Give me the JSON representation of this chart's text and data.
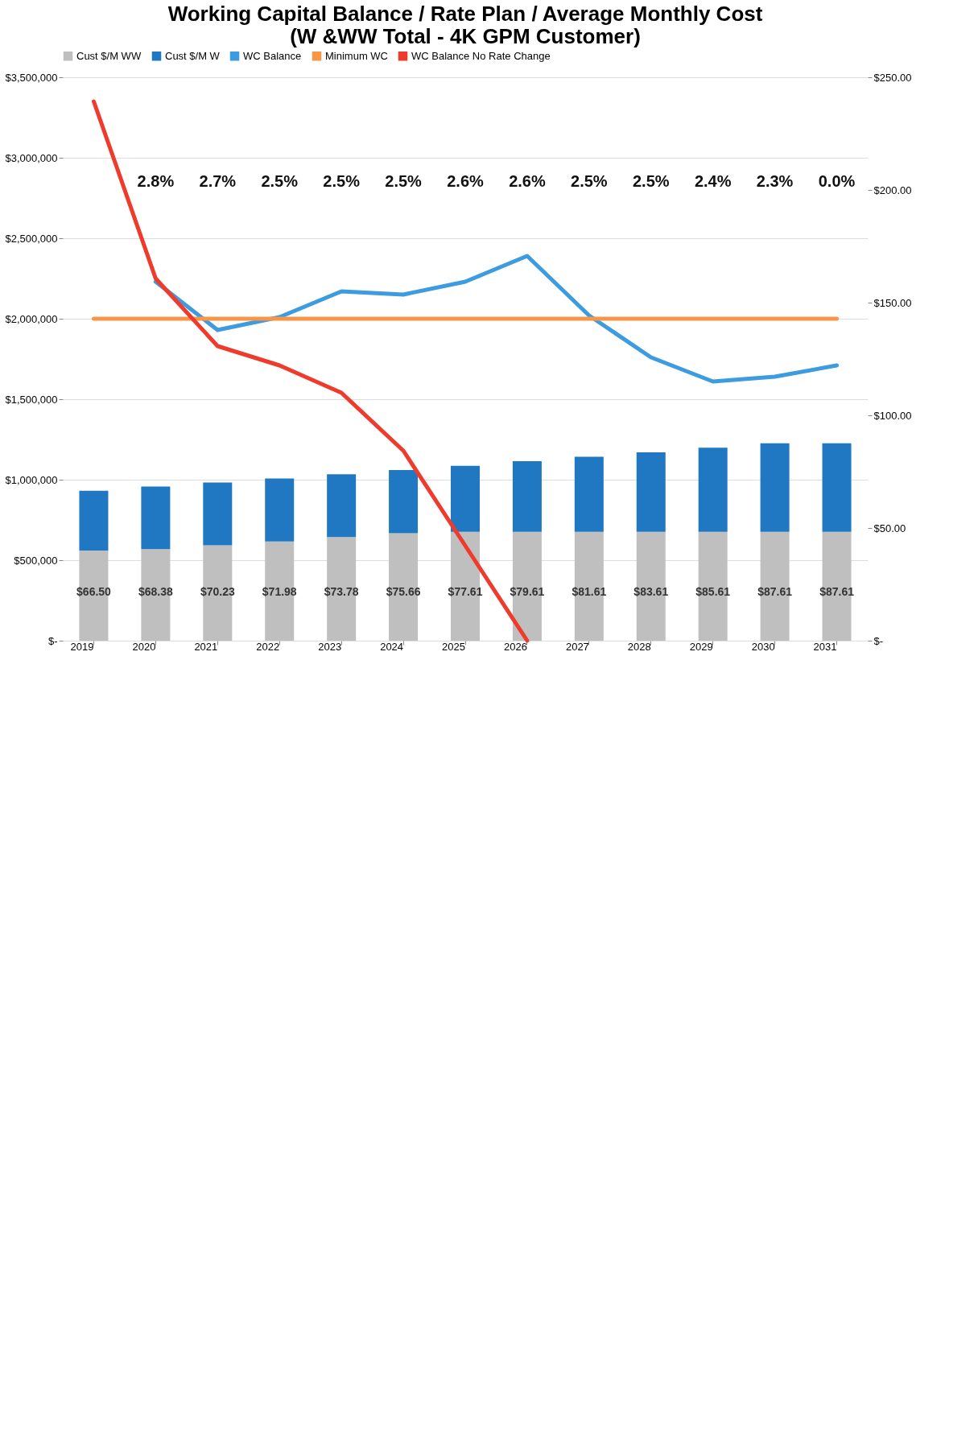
{
  "chart_data": {
    "type": "bar",
    "title": [
      "Working Capital Balance / Rate Plan / Average Monthly Cost",
      "(W &WW Total - 4K GPM Customer)"
    ],
    "categories": [
      "2019",
      "2020",
      "2021",
      "2022",
      "2023",
      "2024",
      "2025",
      "2026",
      "2027",
      "2028",
      "2029",
      "2030",
      "2031"
    ],
    "stacked": true,
    "series": [
      {
        "name": "Cust $/M WW",
        "axis": "y2",
        "color": "#bfbfbf",
        "values": [
          40,
          40.6,
          42.3,
          44,
          46,
          47.7,
          48.3,
          48.3,
          48.3,
          48.3,
          48.3,
          48.3,
          48.3
        ]
      },
      {
        "name": "Cust $/M W",
        "axis": "y2",
        "color": "#1f78c1",
        "values": [
          26.5,
          27.8,
          27.9,
          28,
          27.8,
          28,
          29.3,
          31.3,
          33.3,
          35.3,
          37.3,
          39.3,
          39.3
        ]
      },
      {
        "name": "WC Balance",
        "type": "line",
        "color": "#3d9be0",
        "values": [
          null,
          2230000,
          1930000,
          2010000,
          2170000,
          2150000,
          2230000,
          2390000,
          2020000,
          1760000,
          1610000,
          1640000,
          1710000
        ]
      },
      {
        "name": "Minimum WC",
        "type": "line",
        "color": "#f79646",
        "values": [
          2000000,
          2000000,
          2000000,
          2000000,
          2000000,
          2000000,
          2000000,
          2000000,
          2000000,
          2000000,
          2000000,
          2000000,
          2000000
        ]
      },
      {
        "name": "WC Balance No Rate Change",
        "type": "line",
        "color": "#ee3b2b",
        "values": [
          3350000,
          2250000,
          1830000,
          1710000,
          1540000,
          1180000,
          590000,
          0,
          null,
          null,
          null,
          null,
          null
        ]
      }
    ],
    "ylim": [
      0,
      3500000
    ],
    "yticks": [
      {
        "value": 0,
        "label": "$-"
      },
      {
        "value": 500000,
        "label": "$500,000"
      },
      {
        "value": 1000000,
        "label": "$1,000,000"
      },
      {
        "value": 1500000,
        "label": "$1,500,000"
      },
      {
        "value": 2000000,
        "label": "$2,000,000"
      },
      {
        "value": 2500000,
        "label": "$2,500,000"
      },
      {
        "value": 3000000,
        "label": "$3,000,000"
      },
      {
        "value": 3500000,
        "label": "$3,500,000"
      }
    ],
    "y2lim": [
      0,
      250
    ],
    "y2ticks": [
      {
        "value": 0,
        "label": "$-"
      },
      {
        "value": 50,
        "label": "$50.00"
      },
      {
        "value": 100,
        "label": "$100.00"
      },
      {
        "value": 150,
        "label": "$150.00"
      },
      {
        "value": 200,
        "label": "$200.00"
      },
      {
        "value": 250,
        "label": "$250.00"
      }
    ],
    "grid": "y",
    "legend": "top",
    "totals": [
      "$66.50",
      "$68.38",
      "$70.23",
      "$71.98",
      "$73.78",
      "$75.66",
      "$77.61",
      "$79.61",
      "$81.61",
      "$83.61",
      "$85.61",
      "$87.61",
      "$87.61"
    ],
    "annotations": [
      "2.8%",
      "2.7%",
      "2.5%",
      "2.5%",
      "2.5%",
      "2.6%",
      "2.6%",
      "2.5%",
      "2.5%",
      "2.4%",
      "2.3%",
      "0.0%"
    ]
  }
}
